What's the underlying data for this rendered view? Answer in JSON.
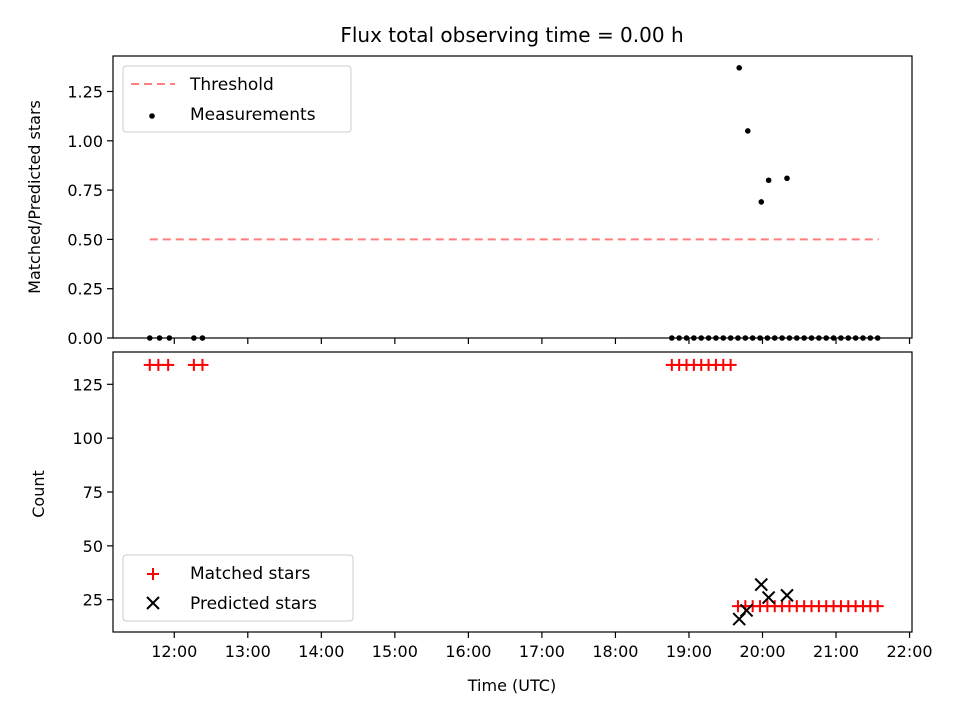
{
  "chart_data": [
    {
      "type": "scatter",
      "title": "Flux total observing time = 0.00 h",
      "xlabel": "",
      "ylabel": "Matched/Predicted stars",
      "ylim": [
        0,
        1.43
      ],
      "yticks": [
        "0.00",
        "0.25",
        "0.50",
        "0.75",
        "1.00",
        "1.25"
      ],
      "legend_position": "upper-left",
      "series": [
        {
          "name": "Threshold",
          "kind": "dashed-line",
          "color": "#ff7f7f",
          "x": [
            "11:40",
            "21:35"
          ],
          "y": [
            0.5,
            0.5
          ]
        },
        {
          "name": "Measurements",
          "kind": "points",
          "color": "#000000",
          "x": [
            "11:40",
            "11:48",
            "11:56",
            "12:16",
            "12:23",
            "18:46",
            "18:52",
            "18:58",
            "19:04",
            "19:10",
            "19:16",
            "19:22",
            "19:28",
            "19:34",
            "19:40",
            "19:46",
            "19:52",
            "19:58",
            "20:04",
            "20:10",
            "20:16",
            "20:22",
            "20:28",
            "20:34",
            "20:40",
            "20:46",
            "20:52",
            "20:58",
            "21:04",
            "21:10",
            "21:16",
            "21:22",
            "21:28",
            "21:34",
            "19:41",
            "19:48",
            "19:59",
            "20:05",
            "20:20"
          ],
          "y": [
            0,
            0,
            0,
            0,
            0,
            0,
            0,
            0,
            0,
            0,
            0,
            0,
            0,
            0,
            0,
            0,
            0,
            0,
            0,
            0,
            0,
            0,
            0,
            0,
            0,
            0,
            0,
            0,
            0,
            0,
            0,
            0,
            0,
            0,
            1.37,
            1.05,
            0.69,
            0.8,
            0.81
          ]
        }
      ]
    },
    {
      "type": "scatter",
      "title": "",
      "xlabel": "Time (UTC)",
      "ylabel": "Count",
      "ylim": [
        10,
        140
      ],
      "yticks": [
        "25",
        "50",
        "75",
        "100",
        "125"
      ],
      "xlim": [
        "11:10",
        "22:02"
      ],
      "xticks": [
        "12:00",
        "13:00",
        "14:00",
        "15:00",
        "16:00",
        "17:00",
        "18:00",
        "19:00",
        "20:00",
        "21:00",
        "22:00"
      ],
      "legend_position": "lower-left",
      "series": [
        {
          "name": "Matched stars",
          "marker": "plus",
          "color": "#ff0000",
          "x": [
            "11:40",
            "11:47",
            "11:55",
            "12:16",
            "12:23",
            "18:46",
            "18:52",
            "18:58",
            "19:04",
            "19:10",
            "19:16",
            "19:22",
            "19:28",
            "19:34",
            "19:40",
            "19:46",
            "19:52",
            "19:58",
            "20:04",
            "20:10",
            "20:16",
            "20:22",
            "20:28",
            "20:34",
            "20:40",
            "20:46",
            "20:52",
            "20:58",
            "21:04",
            "21:10",
            "21:16",
            "21:22",
            "21:28",
            "21:34"
          ],
          "y": [
            134,
            134,
            134,
            134,
            134,
            134,
            134,
            134,
            134,
            134,
            134,
            134,
            134,
            134,
            22,
            22,
            22,
            22,
            22,
            22,
            22,
            22,
            22,
            22,
            22,
            22,
            22,
            22,
            22,
            22,
            22,
            22,
            22,
            22
          ]
        },
        {
          "name": "Predicted stars",
          "marker": "x",
          "color": "#000000",
          "x": [
            "19:41",
            "19:47",
            "19:59",
            "20:05",
            "20:20"
          ],
          "y": [
            16,
            20,
            32,
            26,
            27
          ]
        }
      ]
    }
  ]
}
